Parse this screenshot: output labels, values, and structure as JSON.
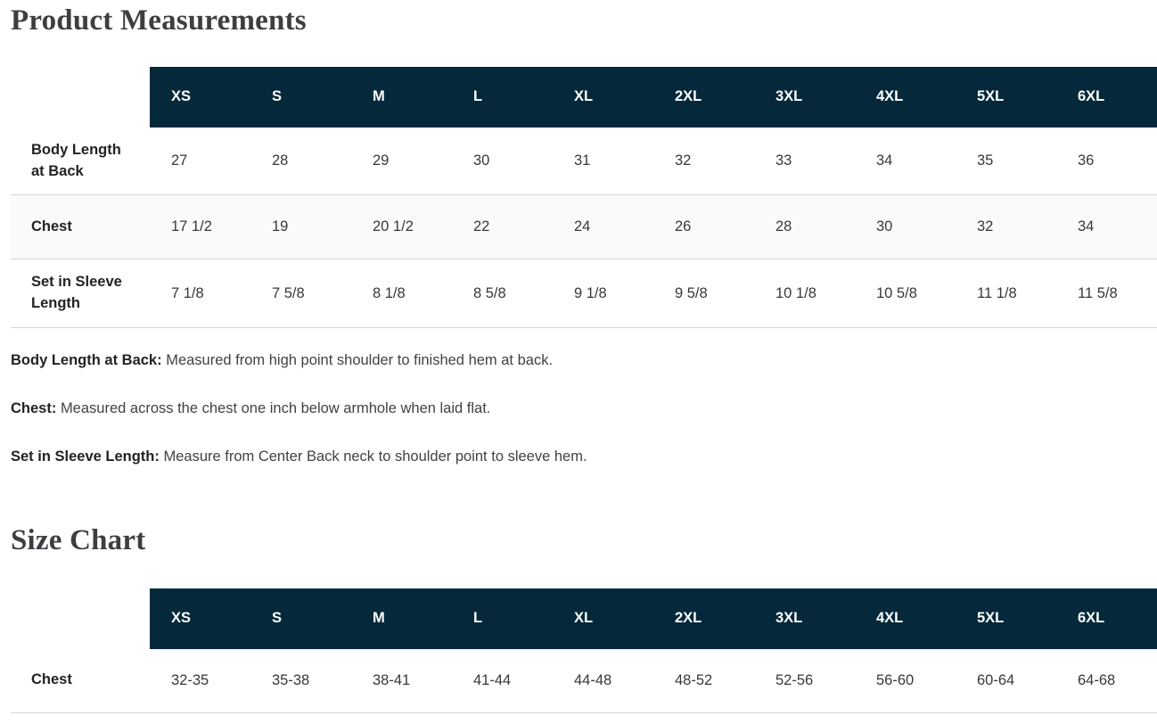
{
  "headings": {
    "product_measurements": "Product Measurements",
    "size_chart": "Size Chart"
  },
  "colors": {
    "header_bg": "#05293a",
    "header_text": "#ffffff",
    "striped_row_bg": "#fafafa",
    "row_border": "#d6d6d6"
  },
  "product_measurements": {
    "header": [
      "XS",
      "S",
      "M",
      "L",
      "XL",
      "2XL",
      "3XL",
      "4XL",
      "5XL",
      "6XL"
    ],
    "rows": [
      {
        "label": "Body Length at Back",
        "values": [
          "27",
          "28",
          "29",
          "30",
          "31",
          "32",
          "33",
          "34",
          "35",
          "36"
        ]
      },
      {
        "label": "Chest",
        "values": [
          "17 1/2",
          "19",
          "20 1/2",
          "22",
          "24",
          "26",
          "28",
          "30",
          "32",
          "34"
        ]
      },
      {
        "label": "Set in Sleeve Length",
        "values": [
          "7 1/8",
          "7 5/8",
          "8 1/8",
          "8 5/8",
          "9 1/8",
          "9 5/8",
          "10 1/8",
          "10 5/8",
          "11 1/8",
          "11 5/8"
        ]
      }
    ]
  },
  "notes": [
    {
      "term": "Body Length at Back:",
      "definition": "Measured from high point shoulder to finished hem at back."
    },
    {
      "term": "Chest:",
      "definition": "Measured across the chest one inch below armhole when laid flat."
    },
    {
      "term": "Set in Sleeve Length:",
      "definition": "Measure from Center Back neck to shoulder point to sleeve hem."
    }
  ],
  "size_chart": {
    "header": [
      "XS",
      "S",
      "M",
      "L",
      "XL",
      "2XL",
      "3XL",
      "4XL",
      "5XL",
      "6XL"
    ],
    "rows": [
      {
        "label": "Chest",
        "values": [
          "32-35",
          "35-38",
          "38-41",
          "41-44",
          "44-48",
          "48-52",
          "52-56",
          "56-60",
          "60-64",
          "64-68"
        ]
      }
    ]
  }
}
